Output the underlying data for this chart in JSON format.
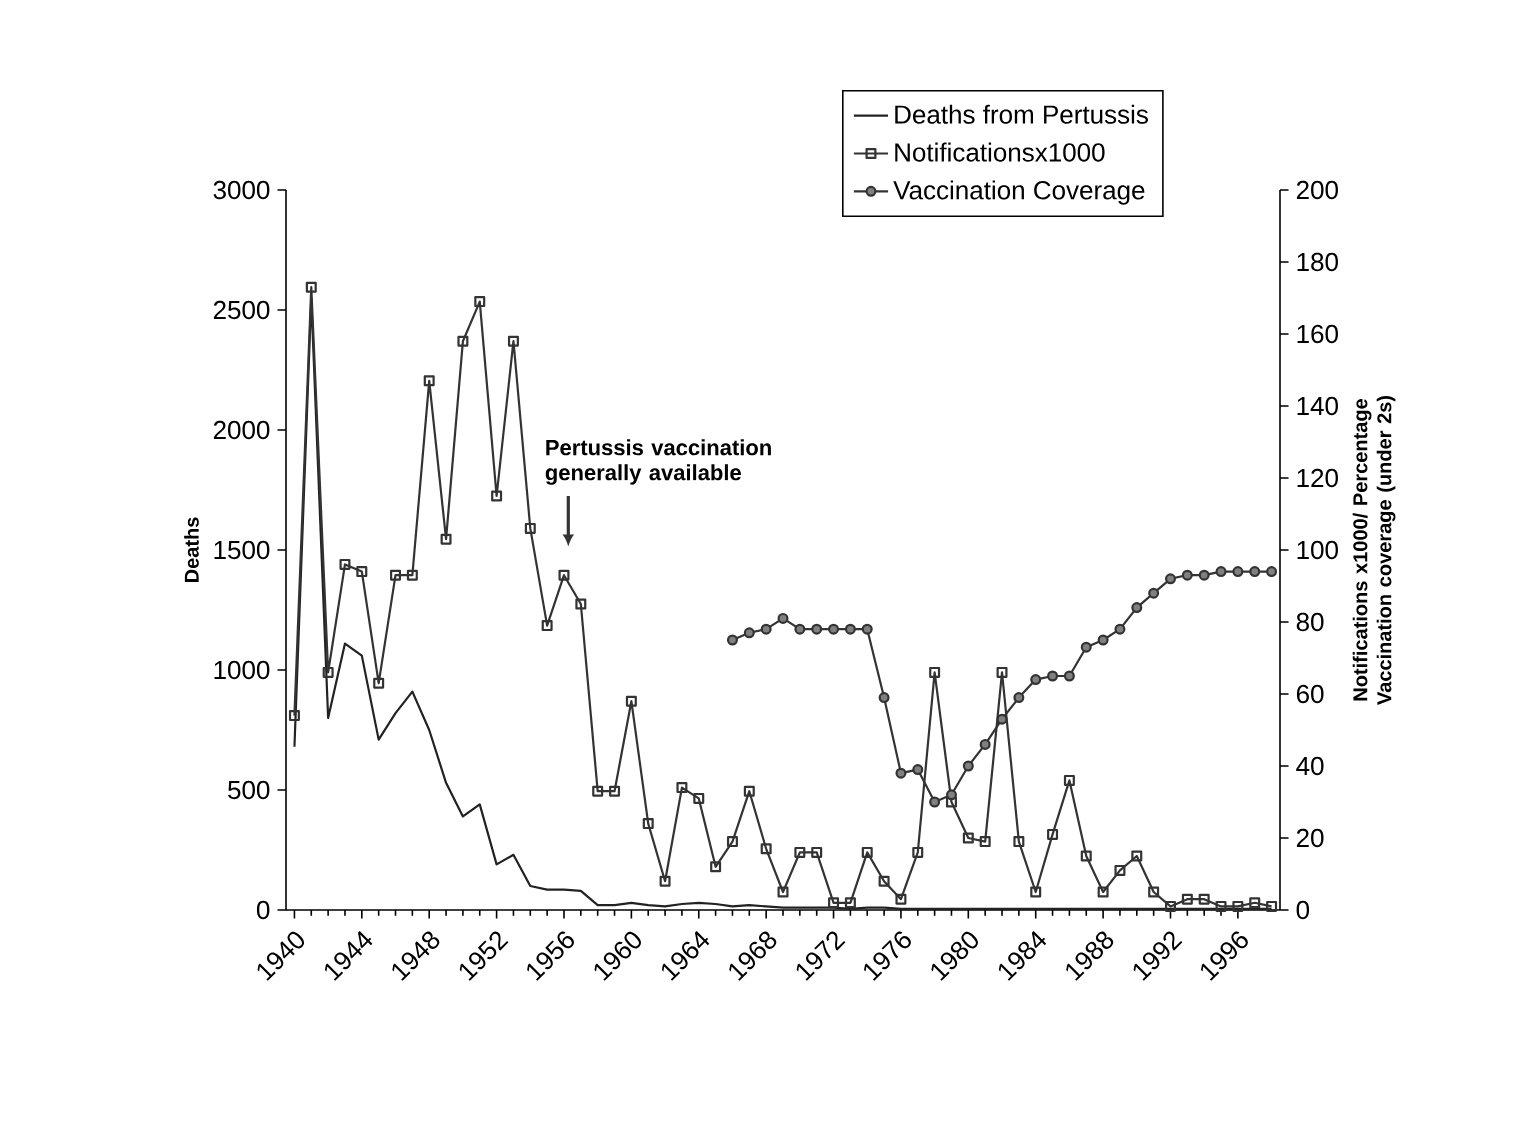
{
  "chart_data": {
    "type": "line",
    "ylabel": "Deaths",
    "y2label": "Notifications x1000/ Percentage Vaccination coverage (under 2s)",
    "x": [
      1940,
      1941,
      1942,
      1943,
      1944,
      1945,
      1946,
      1947,
      1948,
      1949,
      1950,
      1951,
      1952,
      1953,
      1954,
      1955,
      1956,
      1957,
      1958,
      1959,
      1960,
      1961,
      1962,
      1963,
      1964,
      1965,
      1966,
      1967,
      1968,
      1969,
      1970,
      1971,
      1972,
      1973,
      1974,
      1975,
      1976,
      1977,
      1978,
      1979,
      1980,
      1981,
      1982,
      1983,
      1984,
      1985,
      1986,
      1987,
      1988,
      1989,
      1990,
      1991,
      1992,
      1993,
      1994,
      1995,
      1996,
      1997,
      1998
    ],
    "series": [
      {
        "name": "Deaths from Pertussis",
        "color": "#222222",
        "marker": "none",
        "values": [
          680,
          2550,
          800,
          1110,
          1060,
          710,
          820,
          910,
          750,
          530,
          390,
          440,
          190,
          230,
          100,
          85,
          85,
          80,
          20,
          20,
          30,
          20,
          15,
          25,
          30,
          25,
          15,
          20,
          15,
          10,
          10,
          10,
          10,
          5,
          10,
          10,
          5,
          5,
          5,
          5,
          5,
          5,
          5,
          5,
          5,
          5,
          5,
          5,
          5,
          5,
          5,
          5,
          5,
          5,
          5,
          5,
          5,
          5,
          5
        ]
      },
      {
        "name": "Notificationsx1000",
        "color": "#333333",
        "marker": "square",
        "axis": "y2",
        "values": [
          54,
          173,
          66,
          96,
          94,
          63,
          93,
          93,
          147,
          103,
          158,
          169,
          115,
          158,
          106,
          79,
          93,
          85,
          33,
          33,
          58,
          24,
          8,
          34,
          31,
          12,
          19,
          33,
          17,
          5,
          16,
          16,
          2,
          2,
          16,
          8,
          3,
          16,
          66,
          30,
          20,
          19,
          66,
          19,
          5,
          21,
          36,
          15,
          5,
          11,
          15,
          5,
          1,
          3,
          3,
          1,
          1,
          2,
          1
        ]
      },
      {
        "name": "Vaccination Coverage",
        "color": "#333333",
        "marker": "circle",
        "axis": "y2",
        "values": [
          null,
          null,
          null,
          null,
          null,
          null,
          null,
          null,
          null,
          null,
          null,
          null,
          null,
          null,
          null,
          null,
          null,
          null,
          null,
          null,
          null,
          null,
          null,
          null,
          null,
          null,
          75,
          77,
          78,
          81,
          78,
          78,
          78,
          78,
          78,
          59,
          38,
          39,
          30,
          32,
          40,
          46,
          53,
          59,
          64,
          65,
          65,
          73,
          75,
          78,
          84,
          88,
          92,
          93,
          93,
          94,
          94,
          94,
          94
        ]
      }
    ],
    "xlim": [
      1939.5,
      1998.5
    ],
    "xticks": [
      1940,
      1944,
      1948,
      1952,
      1956,
      1960,
      1964,
      1968,
      1972,
      1976,
      1980,
      1984,
      1988,
      1992,
      1996
    ],
    "ylim": [
      0,
      3000
    ],
    "yticks": [
      0,
      500,
      1000,
      1500,
      2000,
      2500,
      3000
    ],
    "y2lim": [
      0,
      200
    ],
    "y2ticks": [
      0,
      20,
      40,
      60,
      80,
      100,
      120,
      140,
      160,
      180,
      200
    ],
    "annotations": [
      "Pertussis vaccination generally available"
    ],
    "legend": "top right",
    "grid": false
  }
}
